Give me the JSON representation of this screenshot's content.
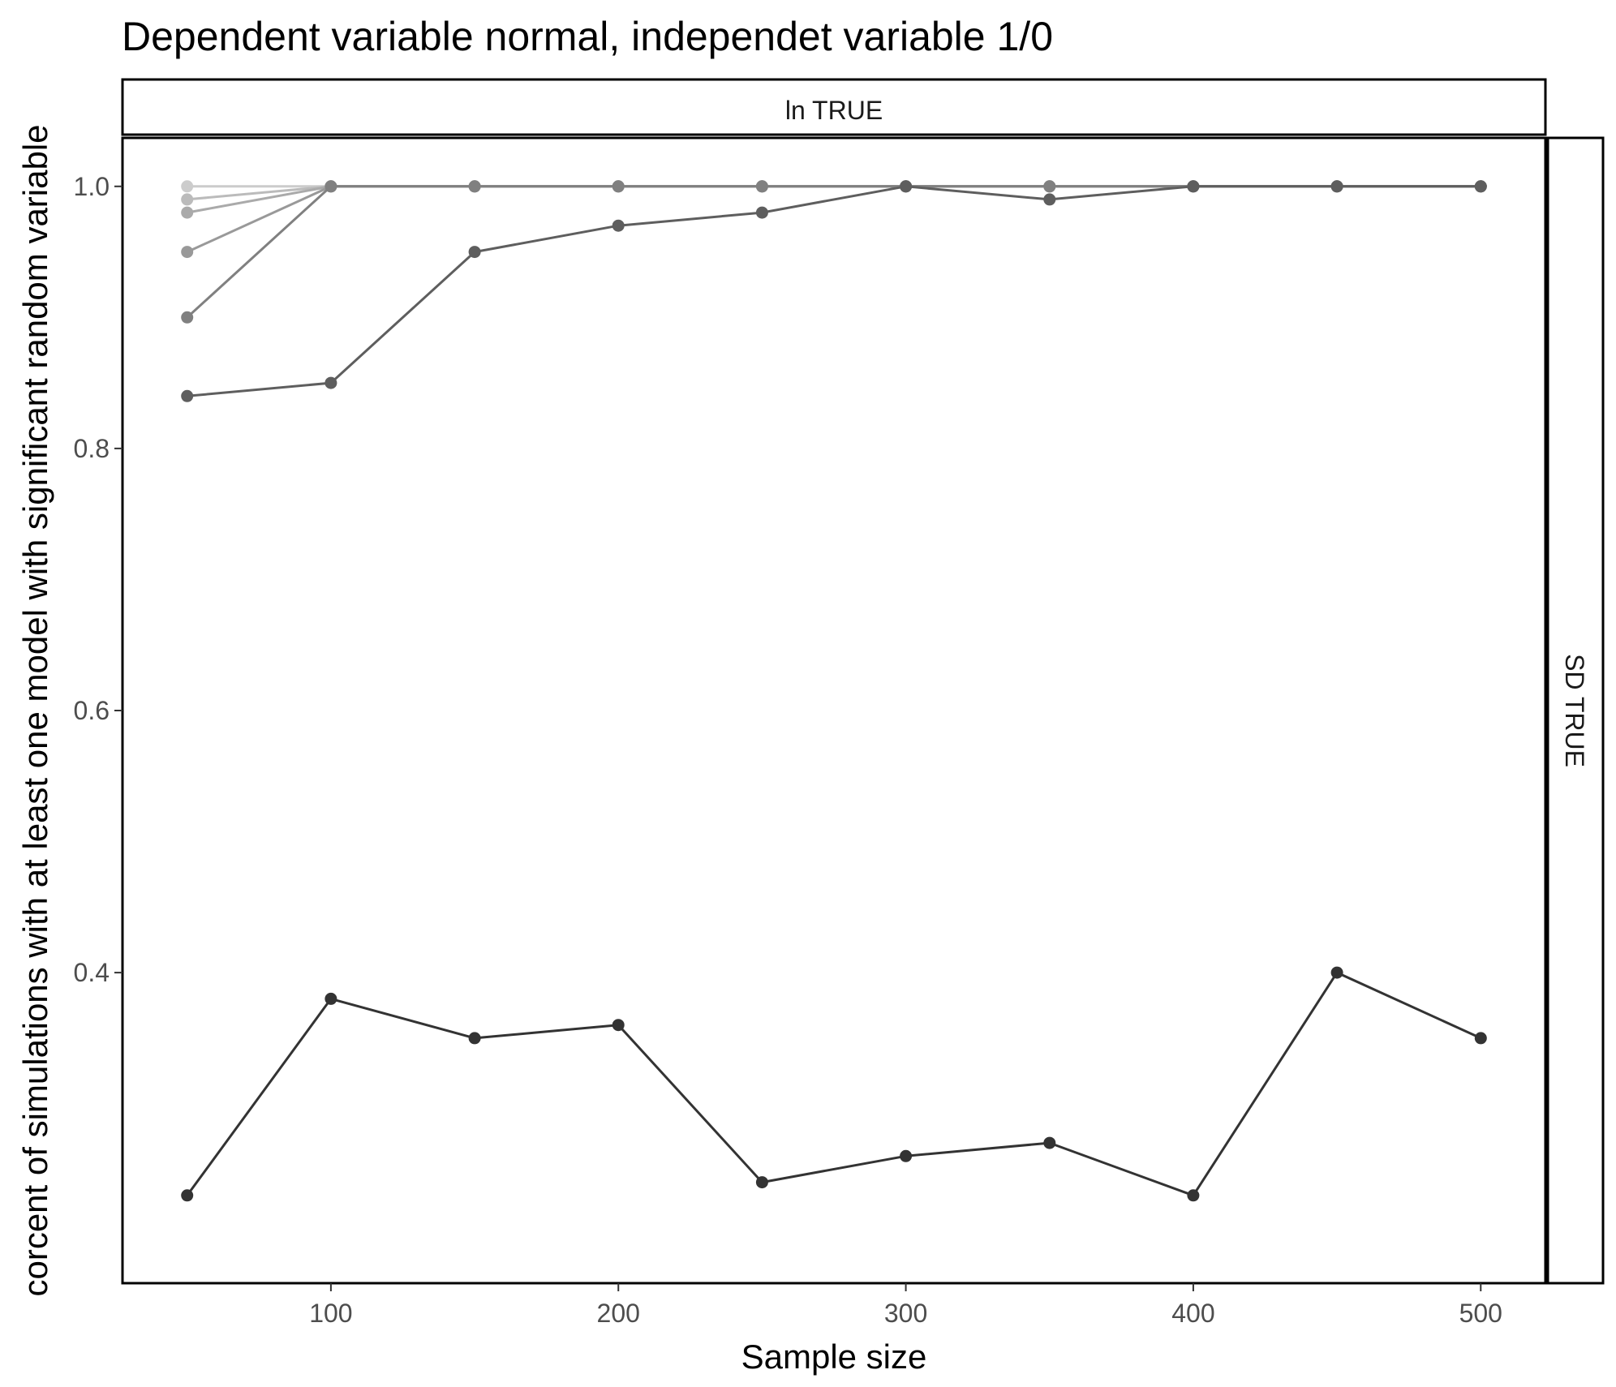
{
  "chart_data": {
    "type": "line",
    "title": "Dependent variable normal, independet variable 1/0",
    "xlabel": "Sample size",
    "ylabel": "corcent of simulations with at least one model with significant random variable",
    "facet_top": "ln TRUE",
    "facet_right": "SD TRUE",
    "xlim": [
      27.5,
      522.5
    ],
    "ylim": [
      0.163,
      1.037
    ],
    "x_ticks": [
      100,
      200,
      300,
      400,
      500
    ],
    "y_ticks": [
      0.4,
      0.6,
      0.8,
      1.0
    ],
    "grid": false,
    "legend": "none",
    "x": [
      50,
      100,
      150,
      200,
      250,
      300,
      350,
      400,
      450,
      500
    ],
    "series": [
      {
        "color": "#cccccc",
        "values": [
          1.0,
          1.0,
          1.0,
          1.0,
          1.0,
          1.0,
          1.0,
          1.0,
          1.0,
          1.0
        ]
      },
      {
        "color": "#bbbbbb",
        "values": [
          0.99,
          1.0,
          1.0,
          1.0,
          1.0,
          1.0,
          1.0,
          1.0,
          1.0,
          1.0
        ]
      },
      {
        "color": "#aaaaaa",
        "values": [
          0.98,
          1.0,
          1.0,
          1.0,
          1.0,
          1.0,
          1.0,
          1.0,
          1.0,
          1.0
        ]
      },
      {
        "color": "#999999",
        "values": [
          0.95,
          1.0,
          1.0,
          1.0,
          1.0,
          1.0,
          1.0,
          1.0,
          1.0,
          1.0
        ]
      },
      {
        "color": "#808080",
        "values": [
          0.9,
          1.0,
          1.0,
          1.0,
          1.0,
          1.0,
          1.0,
          1.0,
          1.0,
          1.0
        ]
      },
      {
        "color": "#5e5e5e",
        "values": [
          0.84,
          0.85,
          0.95,
          0.97,
          0.98,
          1.0,
          0.99,
          1.0,
          1.0,
          1.0
        ]
      },
      {
        "color": "#333333",
        "values": [
          0.23,
          0.38,
          0.35,
          0.36,
          0.24,
          0.26,
          0.27,
          0.23,
          0.4,
          0.35
        ]
      }
    ]
  }
}
